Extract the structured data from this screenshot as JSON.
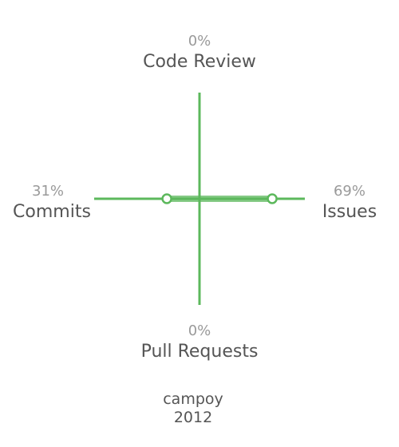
{
  "chart_data": {
    "type": "radar",
    "axes": [
      {
        "key": "code_review",
        "label": "Code Review",
        "value": 0,
        "value_label": "0%"
      },
      {
        "key": "issues",
        "label": "Issues",
        "value": 69,
        "value_label": "69%"
      },
      {
        "key": "pull_requests",
        "label": "Pull Requests",
        "value": 0,
        "value_label": "0%"
      },
      {
        "key": "commits",
        "label": "Commits",
        "value": 31,
        "value_label": "31%"
      }
    ],
    "max": 100,
    "color": "#5cb85c"
  },
  "footer": {
    "user": "campoy",
    "year": "2012"
  }
}
